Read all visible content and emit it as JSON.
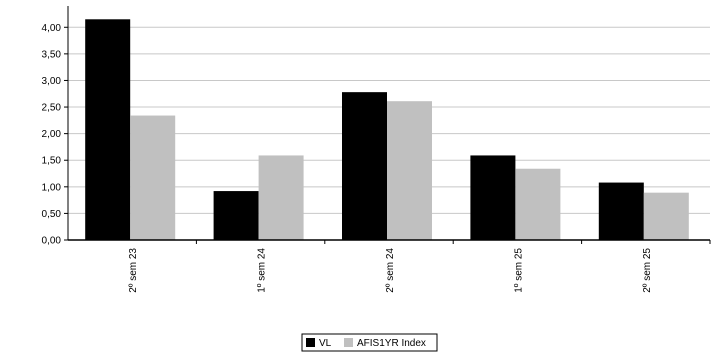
{
  "chart_data": {
    "type": "bar",
    "categories": [
      "2º sem 23",
      "1º sem 24",
      "2º sem 24",
      "1º sem 25",
      "2º sem 25"
    ],
    "series": [
      {
        "name": "VL",
        "values": [
          4.15,
          0.92,
          2.78,
          1.59,
          1.08
        ],
        "color": "#000000"
      },
      {
        "name": "AFIS1YR Index",
        "values": [
          2.34,
          1.59,
          2.61,
          1.34,
          0.89
        ],
        "color": "#c0c0c0"
      }
    ],
    "yticks": [
      "0,00",
      "0,50",
      "1,00",
      "1,50",
      "2,00",
      "2,50",
      "3,00",
      "3,50",
      "4,00"
    ],
    "ylim": [
      0,
      4.4
    ],
    "title": "",
    "xlabel": "",
    "ylabel": "",
    "grid": true,
    "legend_position": "bottom-center",
    "gridline_color": "#c8c8c8"
  }
}
